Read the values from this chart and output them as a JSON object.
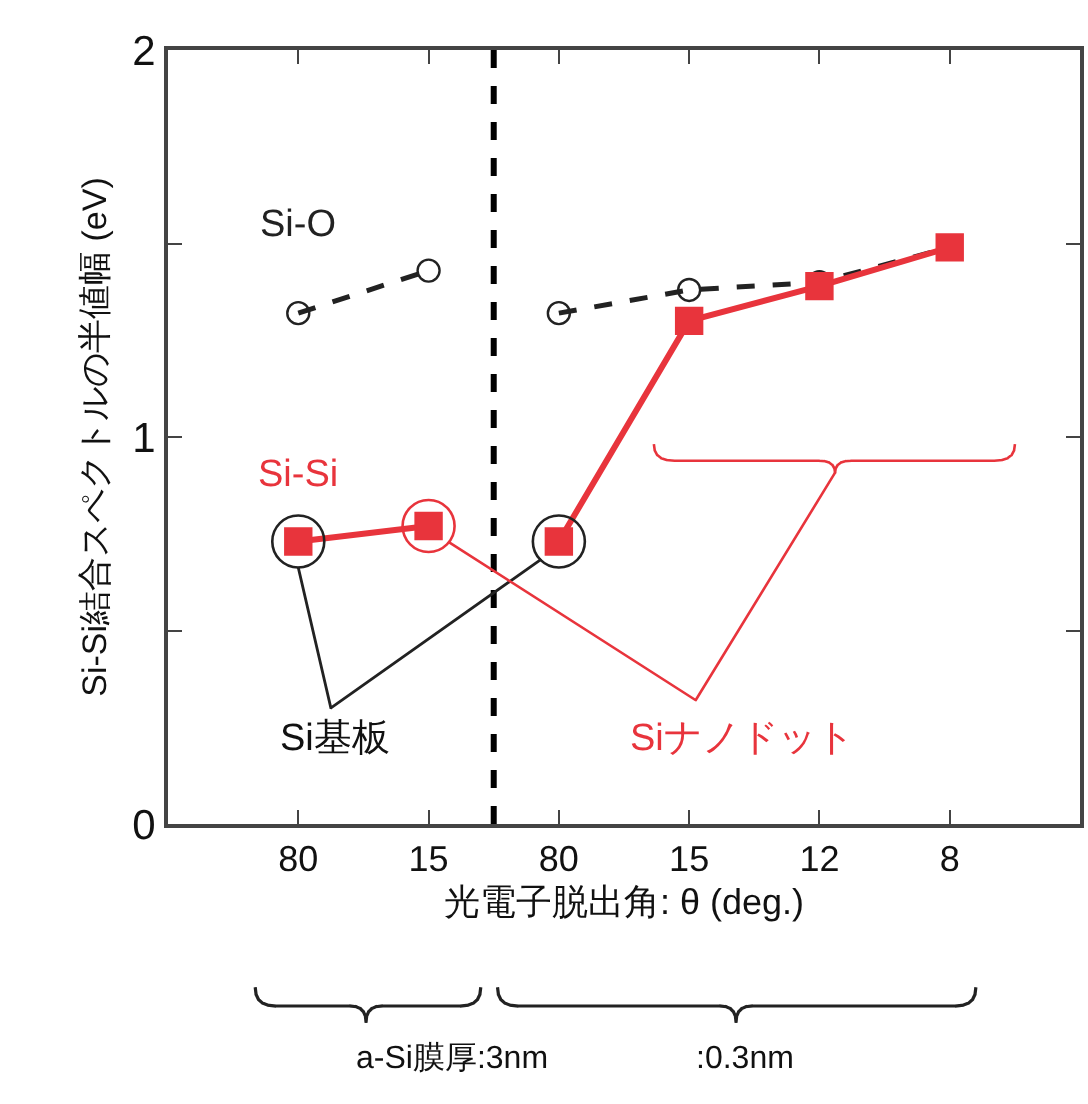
{
  "chart_data": {
    "type": "line",
    "xlabel": "光電子脱出角: θ (deg.)",
    "ylabel": "Si-Si結合スペクトルの半値幅 (eV)",
    "categories": [
      "80",
      "15",
      "80",
      "15",
      "12",
      "8"
    ],
    "ylim": [
      0,
      2
    ],
    "yticks": [
      0,
      {
        "value": 0.5,
        "label": null
      },
      1,
      {
        "value": 1.5,
        "label": null
      },
      2
    ],
    "series": [
      {
        "name": "Si-O",
        "color": "#222222",
        "marker": "circle",
        "line_style": "dashed",
        "values": [
          1.32,
          1.43,
          null,
          null,
          null,
          null
        ]
      },
      {
        "color": "#222222",
        "marker": "circle",
        "line_style": "dashed",
        "values": [
          null,
          null,
          1.32,
          1.38,
          1.4,
          1.49
        ]
      },
      {
        "name": "Si-Si",
        "color": "#e8343c",
        "marker": "square",
        "line_style": "solid",
        "values": [
          0.73,
          0.77,
          null,
          null,
          null,
          null
        ]
      },
      {
        "color": "#e8343c",
        "marker": "square",
        "line_style": "solid",
        "values": [
          null,
          null,
          0.73,
          1.3,
          1.39,
          1.49
        ]
      }
    ],
    "annotations": [
      "Si基板",
      "Siナノドット",
      "a-Si膜厚:3nm",
      ":0.3nm"
    ],
    "grid": false,
    "legend": false
  }
}
